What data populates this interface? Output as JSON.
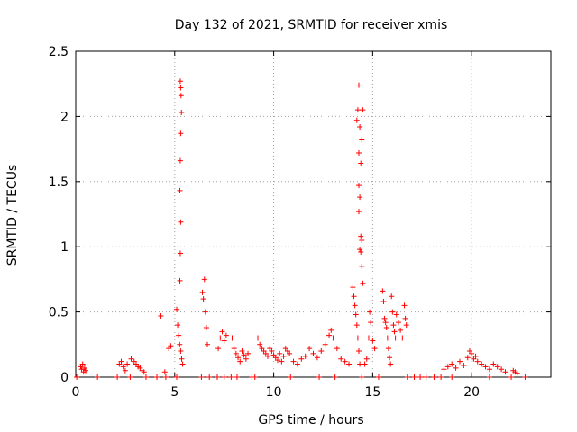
{
  "chart_data": {
    "type": "scatter",
    "title": "Day 132 of 2021, SRMTID for receiver xmis",
    "xlabel": "GPS time / hours",
    "ylabel": "SRMTID / TECUs",
    "xlim": [
      0,
      24
    ],
    "ylim": [
      0,
      2.5
    ],
    "xticks": [
      0,
      5,
      10,
      15,
      20
    ],
    "xtick_labels": [
      "0",
      "5",
      "10",
      "15",
      "20"
    ],
    "yticks": [
      0,
      0.5,
      1,
      1.5,
      2,
      2.5
    ],
    "ytick_labels": [
      "0",
      "0.5",
      "1",
      "1.5",
      "2",
      "2.5"
    ],
    "grid": true,
    "marker": "plus",
    "series": [
      {
        "name": "xmis",
        "color": "#ff0000",
        "points": [
          [
            0.25,
            0.08
          ],
          [
            0.3,
            0.06
          ],
          [
            0.35,
            0.1
          ],
          [
            0.4,
            0.04
          ],
          [
            0.45,
            0.07
          ],
          [
            0.5,
            0.05
          ],
          [
            2.2,
            0.1
          ],
          [
            2.3,
            0.12
          ],
          [
            2.4,
            0.08
          ],
          [
            2.5,
            0.05
          ],
          [
            2.6,
            0.1
          ],
          [
            2.8,
            0.14
          ],
          [
            2.95,
            0.12
          ],
          [
            3.05,
            0.1
          ],
          [
            3.15,
            0.08
          ],
          [
            3.25,
            0.07
          ],
          [
            3.35,
            0.05
          ],
          [
            3.45,
            0.04
          ],
          [
            4.3,
            0.47
          ],
          [
            4.5,
            0.04
          ],
          [
            4.7,
            0.22
          ],
          [
            4.8,
            0.24
          ],
          [
            5.1,
            0.52
          ],
          [
            5.15,
            0.4
          ],
          [
            5.2,
            0.32
          ],
          [
            5.25,
            0.25
          ],
          [
            5.3,
            0.2
          ],
          [
            5.35,
            0.14
          ],
          [
            5.4,
            0.1
          ],
          [
            5.28,
            2.27
          ],
          [
            5.3,
            2.22
          ],
          [
            5.32,
            2.16
          ],
          [
            5.34,
            2.03
          ],
          [
            5.3,
            1.87
          ],
          [
            5.28,
            1.66
          ],
          [
            5.26,
            1.43
          ],
          [
            5.3,
            1.19
          ],
          [
            5.28,
            0.95
          ],
          [
            5.26,
            0.74
          ],
          [
            6.4,
            0.65
          ],
          [
            6.45,
            0.6
          ],
          [
            6.5,
            0.75
          ],
          [
            6.55,
            0.5
          ],
          [
            6.6,
            0.38
          ],
          [
            6.65,
            0.25
          ],
          [
            7.2,
            0.22
          ],
          [
            7.3,
            0.3
          ],
          [
            7.4,
            0.35
          ],
          [
            7.5,
            0.28
          ],
          [
            7.6,
            0.32
          ],
          [
            7.9,
            0.3
          ],
          [
            8.0,
            0.22
          ],
          [
            8.1,
            0.18
          ],
          [
            8.2,
            0.15
          ],
          [
            8.3,
            0.12
          ],
          [
            8.4,
            0.2
          ],
          [
            8.5,
            0.17
          ],
          [
            8.6,
            0.14
          ],
          [
            8.7,
            0.18
          ],
          [
            9.2,
            0.3
          ],
          [
            9.3,
            0.25
          ],
          [
            9.4,
            0.22
          ],
          [
            9.5,
            0.2
          ],
          [
            9.6,
            0.18
          ],
          [
            9.7,
            0.16
          ],
          [
            9.8,
            0.22
          ],
          [
            9.9,
            0.2
          ],
          [
            10.0,
            0.17
          ],
          [
            10.1,
            0.15
          ],
          [
            10.2,
            0.13
          ],
          [
            10.3,
            0.18
          ],
          [
            10.4,
            0.12
          ],
          [
            10.5,
            0.16
          ],
          [
            10.6,
            0.22
          ],
          [
            10.7,
            0.2
          ],
          [
            10.8,
            0.18
          ],
          [
            11.0,
            0.12
          ],
          [
            11.2,
            0.1
          ],
          [
            11.4,
            0.14
          ],
          [
            11.6,
            0.16
          ],
          [
            11.8,
            0.22
          ],
          [
            12.0,
            0.18
          ],
          [
            12.2,
            0.15
          ],
          [
            12.4,
            0.2
          ],
          [
            12.6,
            0.25
          ],
          [
            12.8,
            0.32
          ],
          [
            12.9,
            0.36
          ],
          [
            13.0,
            0.3
          ],
          [
            13.2,
            0.22
          ],
          [
            13.4,
            0.14
          ],
          [
            13.6,
            0.12
          ],
          [
            13.8,
            0.1
          ],
          [
            14.0,
            0.69
          ],
          [
            14.05,
            0.62
          ],
          [
            14.1,
            0.55
          ],
          [
            14.15,
            0.48
          ],
          [
            14.2,
            0.4
          ],
          [
            14.25,
            0.3
          ],
          [
            14.3,
            0.2
          ],
          [
            14.35,
            0.1
          ],
          [
            14.3,
            2.24
          ],
          [
            14.25,
            2.05
          ],
          [
            14.2,
            1.97
          ],
          [
            14.35,
            1.92
          ],
          [
            14.5,
            2.05
          ],
          [
            14.45,
            1.82
          ],
          [
            14.3,
            1.72
          ],
          [
            14.4,
            1.64
          ],
          [
            14.3,
            1.47
          ],
          [
            14.35,
            1.38
          ],
          [
            14.3,
            1.27
          ],
          [
            14.4,
            1.08
          ],
          [
            14.45,
            1.05
          ],
          [
            14.35,
            0.98
          ],
          [
            14.4,
            0.96
          ],
          [
            14.45,
            0.85
          ],
          [
            14.5,
            0.72
          ],
          [
            14.6,
            0.1
          ],
          [
            14.7,
            0.14
          ],
          [
            14.8,
            0.3
          ],
          [
            14.85,
            0.5
          ],
          [
            14.9,
            0.42
          ],
          [
            15.0,
            0.28
          ],
          [
            15.1,
            0.22
          ],
          [
            15.5,
            0.66
          ],
          [
            15.55,
            0.58
          ],
          [
            15.6,
            0.45
          ],
          [
            15.65,
            0.42
          ],
          [
            15.7,
            0.38
          ],
          [
            15.75,
            0.3
          ],
          [
            15.8,
            0.22
          ],
          [
            15.85,
            0.15
          ],
          [
            15.9,
            0.1
          ],
          [
            15.95,
            0.62
          ],
          [
            16.0,
            0.5
          ],
          [
            16.05,
            0.4
          ],
          [
            16.1,
            0.35
          ],
          [
            16.15,
            0.3
          ],
          [
            16.2,
            0.48
          ],
          [
            16.3,
            0.42
          ],
          [
            16.4,
            0.36
          ],
          [
            16.5,
            0.3
          ],
          [
            16.6,
            0.55
          ],
          [
            16.65,
            0.45
          ],
          [
            16.7,
            0.4
          ],
          [
            18.6,
            0.06
          ],
          [
            18.8,
            0.08
          ],
          [
            19.0,
            0.1
          ],
          [
            19.2,
            0.07
          ],
          [
            19.4,
            0.12
          ],
          [
            19.6,
            0.09
          ],
          [
            19.8,
            0.15
          ],
          [
            19.9,
            0.2
          ],
          [
            20.0,
            0.18
          ],
          [
            20.1,
            0.14
          ],
          [
            20.2,
            0.16
          ],
          [
            20.3,
            0.12
          ],
          [
            20.5,
            0.1
          ],
          [
            20.7,
            0.08
          ],
          [
            20.9,
            0.06
          ],
          [
            21.1,
            0.1
          ],
          [
            21.3,
            0.08
          ],
          [
            21.5,
            0.06
          ],
          [
            21.7,
            0.04
          ],
          [
            22.1,
            0.05
          ],
          [
            22.2,
            0.04
          ],
          [
            22.3,
            0.03
          ],
          [
            0.05,
            0.0
          ],
          [
            1.1,
            0.0
          ],
          [
            2.1,
            0.0
          ],
          [
            2.75,
            0.0
          ],
          [
            3.55,
            0.0
          ],
          [
            4.1,
            0.0
          ],
          [
            4.55,
            0.0
          ],
          [
            5.1,
            0.0
          ],
          [
            6.35,
            0.0
          ],
          [
            6.75,
            0.0
          ],
          [
            7.15,
            0.0
          ],
          [
            7.5,
            0.0
          ],
          [
            7.85,
            0.0
          ],
          [
            8.15,
            0.0
          ],
          [
            8.9,
            0.0
          ],
          [
            9.05,
            0.0
          ],
          [
            10.85,
            0.0
          ],
          [
            12.3,
            0.0
          ],
          [
            13.1,
            0.0
          ],
          [
            14.45,
            0.0
          ],
          [
            15.3,
            0.0
          ],
          [
            16.75,
            0.0
          ],
          [
            17.1,
            0.0
          ],
          [
            17.4,
            0.0
          ],
          [
            17.7,
            0.0
          ],
          [
            18.1,
            0.0
          ],
          [
            18.45,
            0.0
          ],
          [
            19.0,
            0.0
          ],
          [
            20.9,
            0.0
          ],
          [
            22.0,
            0.0
          ],
          [
            22.7,
            0.0
          ]
        ]
      }
    ]
  }
}
